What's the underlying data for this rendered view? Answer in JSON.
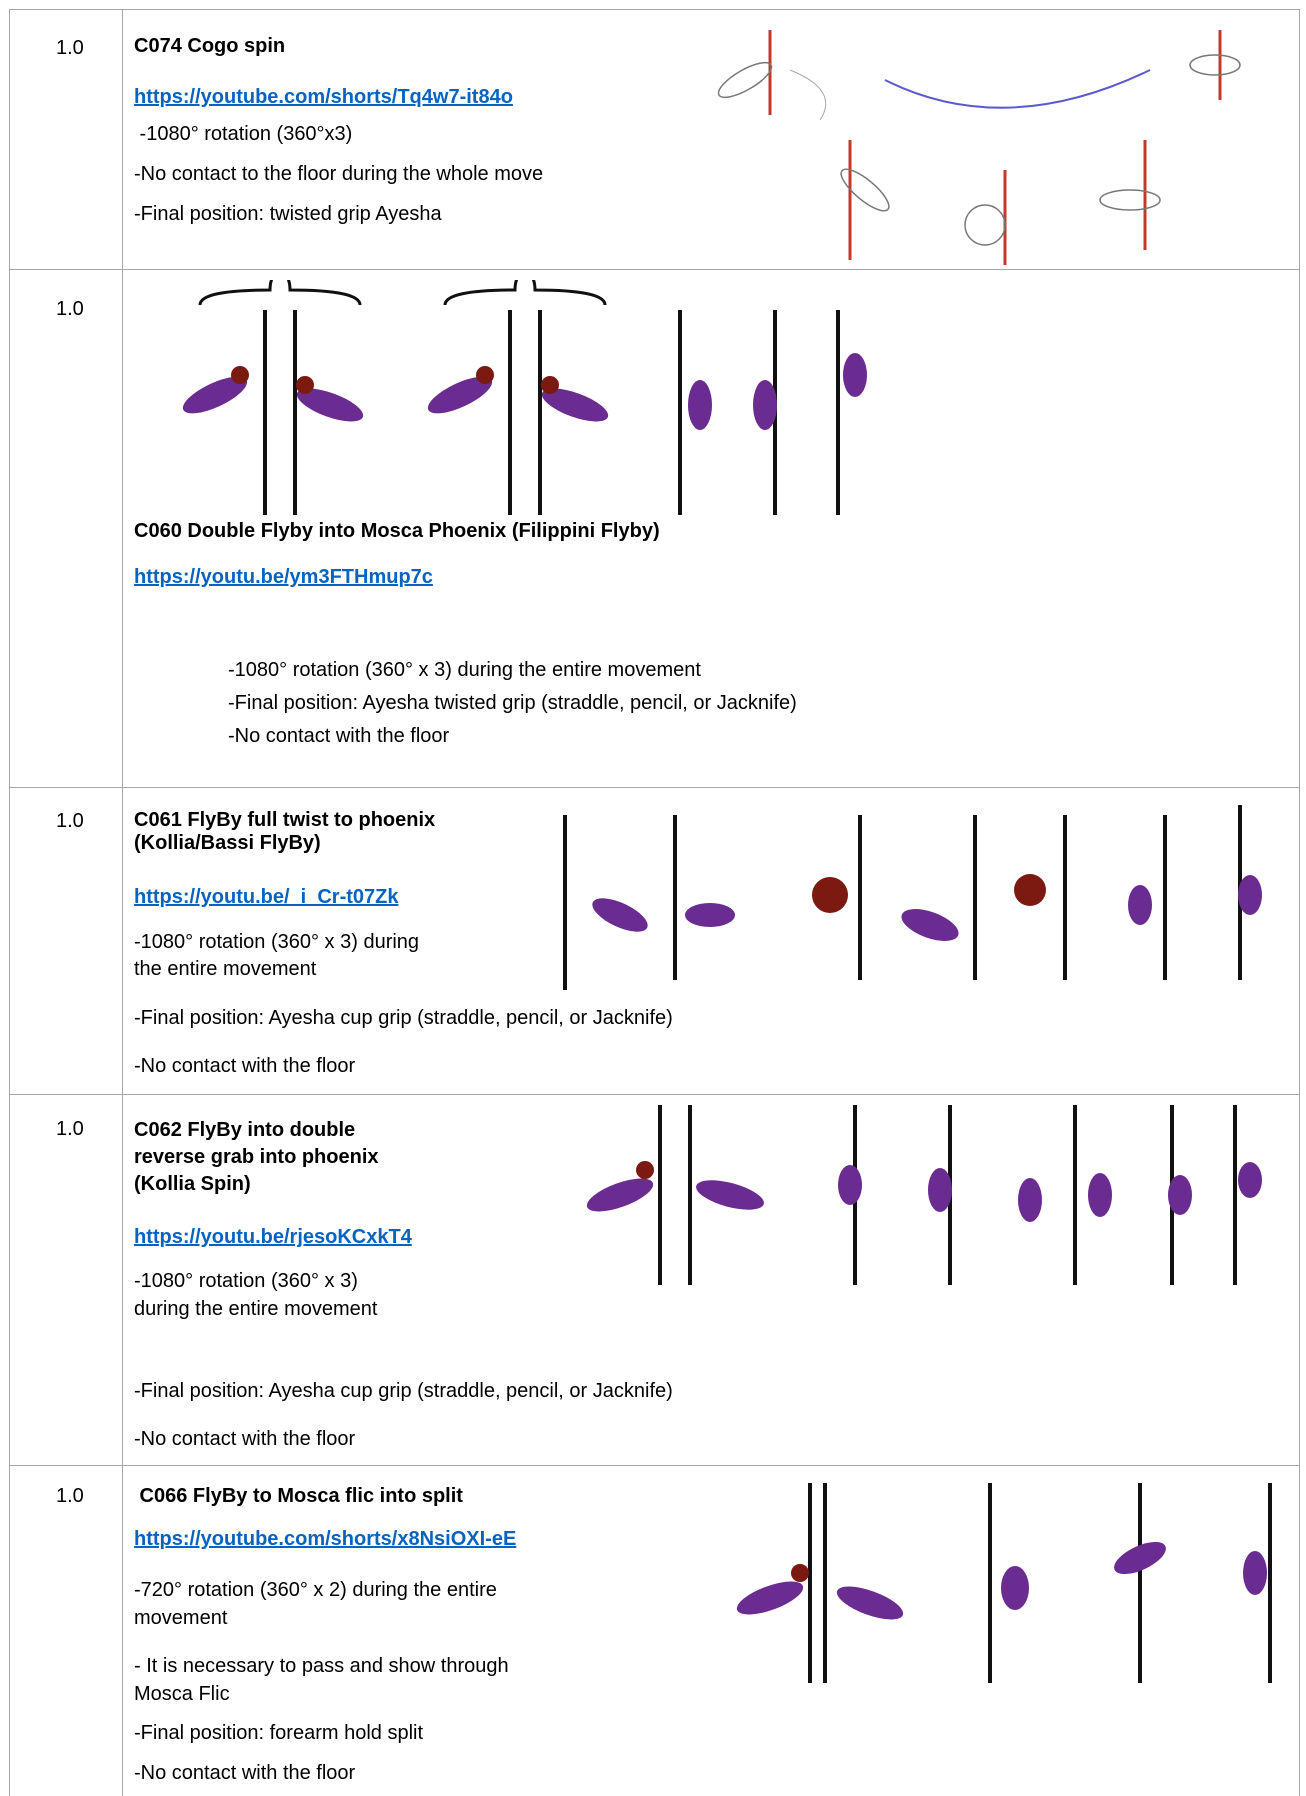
{
  "table": {
    "rows": [
      {
        "score": "1.0",
        "title": [
          "C074 Cogo spin"
        ],
        "link": "https://youtube.com/shorts/Tq4w7-it84o",
        "lines": [
          " -1080° rotation (360°x3)",
          "-No contact to the floor during the whole move",
          "-Final position: twisted grip Ayesha"
        ]
      },
      {
        "score": "1.0",
        "title": [
          "C060 Double Flyby into Mosca Phoenix (Filippini Flyby)"
        ],
        "link": "https://youtu.be/ym3FTHmup7c",
        "lines": [
          "-1080° rotation (360° x 3) during the entire movement",
          "-Final position: Ayesha twisted grip (straddle, pencil, or Jacknife)",
          "-No contact with the floor"
        ]
      },
      {
        "score": "1.0",
        "title": [
          "C061 FlyBy full twist to phoenix",
          "(Kollia/Bassi FlyBy)"
        ],
        "link": "https://youtu.be/_i_Cr-t07Zk",
        "lines": [
          "-1080° rotation (360° x 3) during",
          "the entire movement",
          "-Final position: Ayesha cup grip (straddle, pencil, or Jacknife)",
          "-No contact with the floor"
        ]
      },
      {
        "score": "1.0",
        "title": [
          "C062 FlyBy into double",
          "reverse grab into phoenix",
          "(Kollia Spin)"
        ],
        "link": "https://youtu.be/rjesoKCxkT4",
        "lines": [
          "-1080° rotation (360° x 3)",
          "during the entire movement",
          "-Final position: Ayesha cup grip (straddle, pencil, or Jacknife)",
          "-No contact with the floor"
        ]
      },
      {
        "score": "1.0",
        "title": [
          " C066 FlyBy to Mosca flic into split"
        ],
        "link": "https://youtube.com/shorts/x8NsiOXI-eE",
        "lines": [
          "-720° rotation (360° x 2) during the entire",
          "movement",
          "- It is necessary to pass and show through",
          "Mosca Flic",
          "-Final position: forearm hold split",
          "-No contact with the floor"
        ]
      }
    ]
  }
}
